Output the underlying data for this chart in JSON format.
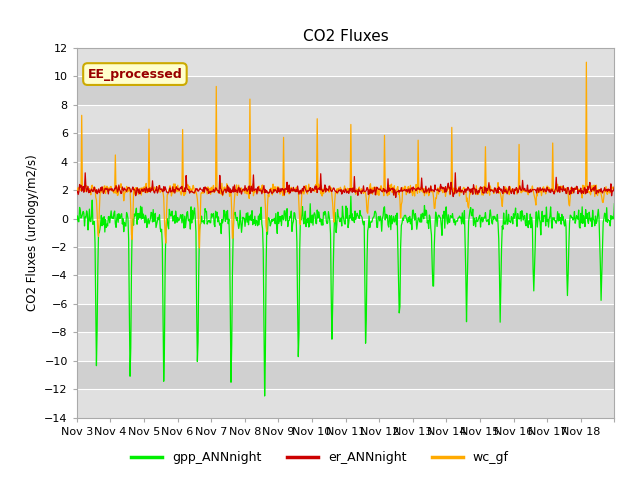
{
  "title": "CO2 Fluxes",
  "ylabel": "CO2 Fluxes (urology/m2/s)",
  "ylim": [
    -14,
    12
  ],
  "yticks": [
    -14,
    -12,
    -10,
    -8,
    -6,
    -4,
    -2,
    0,
    2,
    4,
    6,
    8,
    10,
    12
  ],
  "xlabel": "",
  "xtick_labels": [
    "Nov 3",
    "Nov 4",
    "Nov 5",
    "Nov 6",
    "Nov 7",
    "Nov 8",
    "Nov 9",
    "Nov 10",
    "Nov 11",
    "Nov 12",
    "Nov 13",
    "Nov 14",
    "Nov 15",
    "Nov 16",
    "Nov 17",
    "Nov 18"
  ],
  "n_days": 16,
  "points_per_day": 48,
  "plot_bg": "#e8e8e8",
  "stripe_light": "#dcdcdc",
  "stripe_dark": "#c8c8c8",
  "green_color": "#00ee00",
  "red_color": "#cc0000",
  "orange_color": "#ffaa00",
  "legend_labels": [
    "gpp_ANNnight",
    "er_ANNnight",
    "wc_gf"
  ],
  "annotation_text": "EE_processed",
  "annotation_color": "#990000",
  "annotation_bg": "#ffffcc",
  "annotation_border": "#ccaa00"
}
